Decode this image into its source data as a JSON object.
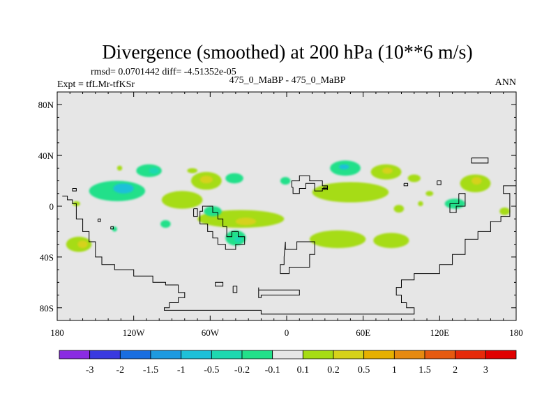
{
  "chart_data": {
    "type": "heatmap",
    "title": "Divergence (smoothed) at 200 hPa (10**6 m/s)",
    "stats_line": "rmsd= 0.0701442 diff= -4.51352e-05",
    "left_label": "Expt = tfLMr-tfKSr",
    "center_label": "475_0_MaBP - 475_0_MaBP",
    "right_label": "ANN",
    "lon_range": [
      -180,
      180
    ],
    "lat_range": [
      -90,
      90
    ],
    "x_ticks": [
      {
        "value": -180,
        "label": "180"
      },
      {
        "value": -120,
        "label": "120W"
      },
      {
        "value": -60,
        "label": "60W"
      },
      {
        "value": 0,
        "label": "0"
      },
      {
        "value": 60,
        "label": "60E"
      },
      {
        "value": 120,
        "label": "120E"
      },
      {
        "value": 180,
        "label": "180"
      }
    ],
    "y_ticks": [
      {
        "value": 80,
        "label": "80N"
      },
      {
        "value": 40,
        "label": "40N"
      },
      {
        "value": 0,
        "label": "0"
      },
      {
        "value": -40,
        "label": "40S"
      },
      {
        "value": -80,
        "label": "80S"
      }
    ],
    "colorbar": {
      "levels": [
        "-3",
        "-2",
        "-1.5",
        "-1",
        "-0.5",
        "-0.2",
        "-0.1",
        "0.1",
        "0.2",
        "0.5",
        "1",
        "1.5",
        "2",
        "3"
      ],
      "colors": [
        "#8a2be2",
        "#3a3ae0",
        "#1a6ee0",
        "#1e9ae0",
        "#1ec0d8",
        "#1ed8b0",
        "#22e08a",
        "#e6e6e6",
        "#a6dc14",
        "#d6d21a",
        "#e6b000",
        "#e68a10",
        "#e65a10",
        "#e62a0a",
        "#e00000"
      ]
    },
    "fill_blobs": [
      {
        "lon": -165,
        "lat": 2,
        "rlon": 3,
        "rlat": 2,
        "color": "#a6dc14"
      },
      {
        "lon": -163,
        "lat": -30,
        "rlon": 10,
        "rlat": 6,
        "color": "#a6dc14"
      },
      {
        "lon": -160,
        "lat": -30,
        "rlon": 4,
        "rlat": 3,
        "color": "#d6d21a"
      },
      {
        "lon": -133,
        "lat": 12,
        "rlon": 22,
        "rlat": 8,
        "color": "#22e08a"
      },
      {
        "lon": -128,
        "lat": 14,
        "rlon": 8,
        "rlat": 4,
        "color": "#1ec0d8"
      },
      {
        "lon": -108,
        "lat": 28,
        "rlon": 10,
        "rlat": 5,
        "color": "#22e08a"
      },
      {
        "lon": -104,
        "lat": 28,
        "rlon": 4,
        "rlat": 2.5,
        "color": "#1ed8b0"
      },
      {
        "lon": -131,
        "lat": 30,
        "rlon": 2,
        "rlat": 2,
        "color": "#a6dc14"
      },
      {
        "lon": -82,
        "lat": 5,
        "rlon": 16,
        "rlat": 7,
        "color": "#a6dc14"
      },
      {
        "lon": -63,
        "lat": 20,
        "rlon": 12,
        "rlat": 7,
        "color": "#a6dc14"
      },
      {
        "lon": -63,
        "lat": 21,
        "rlon": 5,
        "rlat": 3,
        "color": "#d6d21a"
      },
      {
        "lon": -74,
        "lat": 28,
        "rlon": 4,
        "rlat": 2,
        "color": "#a6dc14"
      },
      {
        "lon": -41,
        "lat": 22,
        "rlon": 7,
        "rlat": 4,
        "color": "#22e08a"
      },
      {
        "lon": -36,
        "lat": -10,
        "rlon": 34,
        "rlat": 7,
        "color": "#a6dc14"
      },
      {
        "lon": -32,
        "lat": -12,
        "rlon": 8,
        "rlat": 3,
        "color": "#d6d21a"
      },
      {
        "lon": -40,
        "lat": -25,
        "rlon": 8,
        "rlat": 6,
        "color": "#22e08a"
      },
      {
        "lon": -38,
        "lat": -26,
        "rlon": 3,
        "rlat": 2.5,
        "color": "#1ed8b0"
      },
      {
        "lon": -58,
        "lat": -4,
        "rlon": 7,
        "rlat": 4,
        "color": "#22e08a"
      },
      {
        "lon": -95,
        "lat": -14,
        "rlon": 4,
        "rlat": 3,
        "color": "#22e08a"
      },
      {
        "lon": -135,
        "lat": -18,
        "rlon": 2,
        "rlat": 2,
        "color": "#22e08a"
      },
      {
        "lon": -1,
        "lat": 20,
        "rlon": 4,
        "rlat": 3,
        "color": "#22e08a"
      },
      {
        "lon": 46,
        "lat": 30,
        "rlon": 12,
        "rlat": 6,
        "color": "#22e08a"
      },
      {
        "lon": 45,
        "lat": 31,
        "rlon": 4,
        "rlat": 2,
        "color": "#1ec0d8"
      },
      {
        "lon": 50,
        "lat": 11,
        "rlon": 30,
        "rlat": 8,
        "color": "#a6dc14"
      },
      {
        "lon": 78,
        "lat": 27,
        "rlon": 12,
        "rlat": 6,
        "color": "#a6dc14"
      },
      {
        "lon": 79,
        "lat": 28,
        "rlon": 4,
        "rlat": 2.5,
        "color": "#d6d21a"
      },
      {
        "lon": 100,
        "lat": 22,
        "rlon": 5,
        "rlat": 3,
        "color": "#a6dc14"
      },
      {
        "lon": 112,
        "lat": 10,
        "rlon": 3,
        "rlat": 2,
        "color": "#a6dc14"
      },
      {
        "lon": 40,
        "lat": -26,
        "rlon": 22,
        "rlat": 7,
        "color": "#a6dc14"
      },
      {
        "lon": 82,
        "lat": -27,
        "rlon": 14,
        "rlat": 6,
        "color": "#a6dc14"
      },
      {
        "lon": 88,
        "lat": -2,
        "rlon": 4,
        "rlat": 3,
        "color": "#a6dc14"
      },
      {
        "lon": 148,
        "lat": 18,
        "rlon": 12,
        "rlat": 7,
        "color": "#a6dc14"
      },
      {
        "lon": 149,
        "lat": 20,
        "rlon": 4,
        "rlat": 3,
        "color": "#d6d21a"
      },
      {
        "lon": 132,
        "lat": 2,
        "rlon": 8,
        "rlat": 4,
        "color": "#22e08a"
      },
      {
        "lon": 171,
        "lat": -4,
        "rlon": 4,
        "rlat": 3,
        "color": "#a6dc14"
      },
      {
        "lon": 105,
        "lat": 2,
        "rlon": 2,
        "rlat": 2,
        "color": "#a6dc14"
      }
    ],
    "land_outlines": [
      [
        [
          -176,
          8
        ],
        [
          -172,
          8
        ],
        [
          -172,
          5
        ],
        [
          -168,
          5
        ],
        [
          -168,
          2
        ],
        [
          -165,
          2
        ],
        [
          -165,
          -10
        ],
        [
          -160,
          -10
        ],
        [
          -160,
          -20
        ],
        [
          -155,
          -20
        ],
        [
          -155,
          -28
        ],
        [
          -150,
          -28
        ],
        [
          -150,
          -40
        ],
        [
          -145,
          -40
        ],
        [
          -145,
          -46
        ],
        [
          -135,
          -46
        ],
        [
          -135,
          -50
        ],
        [
          -120,
          -50
        ],
        [
          -120,
          -55
        ],
        [
          -105,
          -55
        ],
        [
          -105,
          -60
        ],
        [
          -95,
          -60
        ],
        [
          -95,
          -62
        ],
        [
          -85,
          -62
        ],
        [
          -85,
          -68
        ],
        [
          -80,
          -68
        ],
        [
          -80,
          -72
        ],
        [
          -85,
          -72
        ],
        [
          -85,
          -76
        ],
        [
          -92,
          -76
        ],
        [
          -92,
          -80
        ],
        [
          -96,
          -80
        ],
        [
          -96,
          -82
        ],
        [
          -20,
          -82
        ],
        [
          -20,
          -85
        ],
        [
          100,
          -85
        ],
        [
          100,
          -80
        ],
        [
          94,
          -80
        ],
        [
          94,
          -76
        ],
        [
          90,
          -76
        ],
        [
          90,
          -70
        ],
        [
          86,
          -70
        ],
        [
          86,
          -64
        ],
        [
          90,
          -64
        ],
        [
          90,
          -58
        ],
        [
          100,
          -58
        ],
        [
          100,
          -53
        ],
        [
          120,
          -53
        ],
        [
          120,
          -46
        ],
        [
          130,
          -46
        ],
        [
          130,
          -38
        ],
        [
          140,
          -38
        ],
        [
          140,
          -26
        ],
        [
          150,
          -26
        ],
        [
          150,
          -20
        ],
        [
          160,
          -20
        ],
        [
          160,
          -12
        ],
        [
          168,
          -12
        ],
        [
          168,
          -8
        ],
        [
          175,
          -8
        ],
        [
          175,
          10
        ],
        [
          170,
          10
        ],
        [
          170,
          16
        ],
        [
          180,
          16
        ]
      ],
      [
        [
          -62,
          0
        ],
        [
          -58,
          0
        ],
        [
          -58,
          -5
        ],
        [
          -54,
          -5
        ],
        [
          -54,
          -10
        ],
        [
          -50,
          -10
        ],
        [
          -50,
          -16
        ],
        [
          -47,
          -16
        ],
        [
          -47,
          -24
        ],
        [
          -43,
          -24
        ],
        [
          -43,
          -20
        ],
        [
          -38,
          -20
        ],
        [
          -38,
          -24
        ],
        [
          -33,
          -24
        ],
        [
          -33,
          -30
        ],
        [
          -40,
          -30
        ],
        [
          -40,
          -34
        ],
        [
          -48,
          -34
        ],
        [
          -48,
          -30
        ],
        [
          -54,
          -30
        ],
        [
          -54,
          -25
        ],
        [
          -58,
          -25
        ],
        [
          -58,
          -20
        ],
        [
          -62,
          -20
        ],
        [
          -62,
          -14
        ],
        [
          -68,
          -14
        ],
        [
          -68,
          -4
        ],
        [
          -66,
          -4
        ],
        [
          -66,
          0
        ],
        [
          -62,
          0
        ]
      ],
      [
        [
          -73,
          -2
        ],
        [
          -70,
          -2
        ],
        [
          -70,
          -8
        ],
        [
          -73,
          -8
        ],
        [
          -73,
          -2
        ]
      ],
      [
        [
          5,
          15
        ],
        [
          5,
          10
        ],
        [
          10,
          10
        ],
        [
          10,
          14
        ],
        [
          15,
          14
        ],
        [
          15,
          18
        ],
        [
          22,
          18
        ],
        [
          22,
          12
        ],
        [
          28,
          12
        ],
        [
          28,
          14
        ],
        [
          32,
          14
        ],
        [
          32,
          16
        ],
        [
          28,
          16
        ],
        [
          28,
          20
        ],
        [
          18,
          20
        ],
        [
          18,
          24
        ],
        [
          10,
          24
        ],
        [
          10,
          20
        ],
        [
          4,
          20
        ],
        [
          4,
          15
        ],
        [
          5,
          15
        ]
      ],
      [
        [
          -1,
          -28
        ],
        [
          -1,
          -34
        ],
        [
          8,
          -34
        ],
        [
          8,
          -28
        ],
        [
          22,
          -28
        ],
        [
          22,
          -38
        ],
        [
          18,
          -38
        ],
        [
          18,
          -48
        ],
        [
          2,
          -48
        ],
        [
          2,
          -53
        ],
        [
          -5,
          -53
        ],
        [
          -5,
          -46
        ],
        [
          -2,
          -46
        ],
        [
          -2,
          -40
        ],
        [
          -1,
          -28
        ]
      ],
      [
        [
          -22,
          -64
        ],
        [
          -22,
          -66
        ],
        [
          10,
          -66
        ],
        [
          10,
          -70
        ],
        [
          -20,
          -70
        ],
        [
          -20,
          -72
        ],
        [
          -22,
          -72
        ],
        [
          -22,
          -64
        ]
      ],
      [
        [
          -56,
          -60
        ],
        [
          -56,
          -63
        ],
        [
          -50,
          -63
        ],
        [
          -50,
          -60
        ],
        [
          -56,
          -60
        ]
      ],
      [
        [
          -42,
          -63
        ],
        [
          -42,
          -68
        ],
        [
          -39,
          -68
        ],
        [
          -39,
          -63
        ],
        [
          -42,
          -63
        ]
      ],
      [
        [
          145,
          38
        ],
        [
          158,
          38
        ],
        [
          158,
          34
        ],
        [
          145,
          34
        ],
        [
          145,
          38
        ]
      ],
      [
        [
          135,
          10
        ],
        [
          140,
          10
        ],
        [
          140,
          0
        ],
        [
          133,
          0
        ],
        [
          133,
          -5
        ],
        [
          128,
          -5
        ],
        [
          128,
          2
        ],
        [
          135,
          2
        ],
        [
          135,
          10
        ]
      ],
      [
        [
          -168,
          14
        ],
        [
          -165,
          14
        ],
        [
          -165,
          12
        ],
        [
          -168,
          12
        ],
        [
          -168,
          14
        ]
      ],
      [
        [
          -148,
          -10
        ],
        [
          -146,
          -10
        ],
        [
          -146,
          -12
        ],
        [
          -148,
          -12
        ],
        [
          -148,
          -10
        ]
      ],
      [
        [
          -138,
          -16
        ],
        [
          -136,
          -16
        ],
        [
          -136,
          -18
        ],
        [
          -138,
          -18
        ],
        [
          -138,
          -16
        ]
      ],
      [
        [
          29,
          15
        ],
        [
          32,
          15
        ],
        [
          32,
          13
        ],
        [
          29,
          13
        ],
        [
          29,
          15
        ]
      ],
      [
        [
          92,
          18
        ],
        [
          95,
          18
        ],
        [
          95,
          16
        ],
        [
          92,
          16
        ],
        [
          92,
          18
        ]
      ],
      [
        [
          118,
          20
        ],
        [
          121,
          20
        ],
        [
          121,
          17
        ],
        [
          118,
          17
        ],
        [
          118,
          20
        ]
      ]
    ]
  }
}
